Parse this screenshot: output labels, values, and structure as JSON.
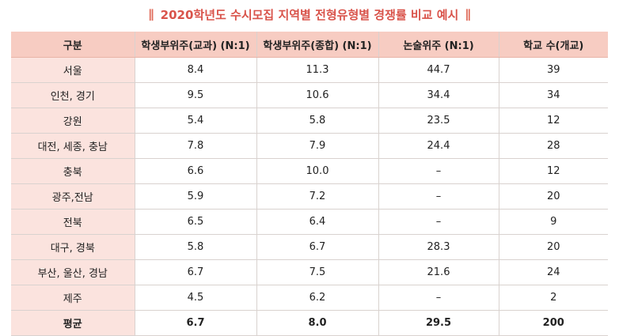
{
  "title": "2020학년도 수시모집 지역별 전형유형별 경쟁률 비교 예시",
  "title_bar": "∥",
  "headers": [
    "구분",
    "학생부위주(교과) (N:1)",
    "학생부위주(종합) (N:1)",
    "논술위주 (N:1)",
    "학교 수(개교)"
  ],
  "rows": [
    [
      "서울",
      "8.4",
      "11.3",
      "44.7",
      "39"
    ],
    [
      "인천, 경기",
      "9.5",
      "10.6",
      "34.4",
      "34"
    ],
    [
      "강원",
      "5.4",
      "5.8",
      "23.5",
      "12"
    ],
    [
      "대전, 세종, 충남",
      "7.8",
      "7.9",
      "24.4",
      "28"
    ],
    [
      "충북",
      "6.6",
      "10.0",
      "–",
      "12"
    ],
    [
      "광주,전남",
      "5.9",
      "7.2",
      "–",
      "20"
    ],
    [
      "전북",
      "6.5",
      "6.4",
      "–",
      "9"
    ],
    [
      "대구, 경북",
      "5.8",
      "6.7",
      "28.3",
      "20"
    ],
    [
      "부산, 울산, 경남",
      "6.7",
      "7.5",
      "21.6",
      "24"
    ],
    [
      "제주",
      "4.5",
      "6.2",
      "–",
      "2"
    ]
  ],
  "average": [
    "평균",
    "6.7",
    "8.0",
    "29.5",
    "200"
  ]
}
